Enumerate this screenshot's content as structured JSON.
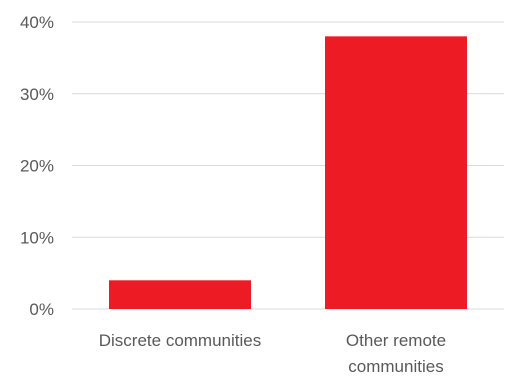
{
  "chart_data": {
    "type": "bar",
    "title": "",
    "xlabel": "",
    "ylabel": "",
    "categories": [
      [
        "Discrete communities"
      ],
      [
        "Other remote",
        "communities"
      ]
    ],
    "values": [
      0.04,
      0.38
    ],
    "ylim": [
      0,
      0.4
    ],
    "yticks": [
      0,
      0.1,
      0.2,
      0.3,
      0.4
    ],
    "ytick_labels": [
      "0%",
      "10%",
      "20%",
      "30%",
      "40%"
    ],
    "grid": true,
    "legend": "none",
    "bar_color": "#ED1C24",
    "grid_color": "#d9d9d9",
    "text_color": "#595959"
  }
}
